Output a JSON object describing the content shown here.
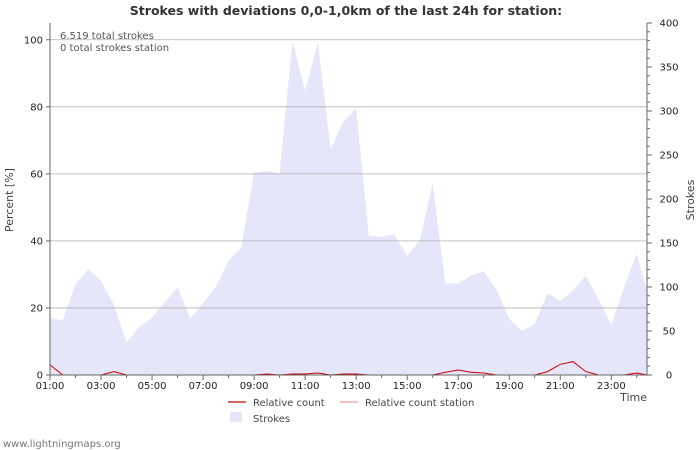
{
  "chart_data": {
    "type": "area",
    "title": "Strokes with deviations 0,0-1,0km of the last 24h for station:",
    "xlabel": "Time",
    "ylabel_left": "Percent   [%]",
    "ylabel_right": "Strokes",
    "y_left_range": [
      0,
      105
    ],
    "y_left_ticks": [
      "0",
      "20",
      "40",
      "60",
      "80",
      "100"
    ],
    "y_right_range": [
      0,
      400
    ],
    "y_right_ticks": [
      "0",
      "50",
      "100",
      "150",
      "200",
      "250",
      "300",
      "350",
      "400"
    ],
    "x_range": [
      1,
      24.4
    ],
    "x_ticks": [
      "01:00",
      "03:00",
      "05:00",
      "07:00",
      "09:00",
      "11:00",
      "13:00",
      "15:00",
      "17:00",
      "19:00",
      "21:00",
      "23:00"
    ],
    "grid": true,
    "annotations": [
      "6.519 total strokes",
      "0 total strokes station"
    ],
    "legend": [
      "Relative count",
      "Relative count station",
      "Strokes"
    ],
    "footer": "www.lightningmaps.org",
    "series": [
      {
        "name": "Strokes",
        "axis": "right",
        "color": "#e6e6fa",
        "points": [
          [
            1.0,
            65
          ],
          [
            1.5,
            62
          ],
          [
            2.0,
            103
          ],
          [
            2.5,
            120
          ],
          [
            3.0,
            107
          ],
          [
            3.5,
            80
          ],
          [
            4.0,
            37
          ],
          [
            4.5,
            55
          ],
          [
            5.0,
            65
          ],
          [
            5.5,
            83
          ],
          [
            6.0,
            99
          ],
          [
            6.5,
            64
          ],
          [
            7.0,
            82
          ],
          [
            7.5,
            100
          ],
          [
            8.0,
            130
          ],
          [
            8.5,
            145
          ],
          [
            9.0,
            230
          ],
          [
            9.5,
            232
          ],
          [
            10.0,
            229
          ],
          [
            10.5,
            380
          ],
          [
            11.0,
            323
          ],
          [
            11.5,
            378
          ],
          [
            12.0,
            257
          ],
          [
            12.5,
            288
          ],
          [
            13.0,
            303
          ],
          [
            13.5,
            158
          ],
          [
            14.0,
            157
          ],
          [
            14.5,
            160
          ],
          [
            15.0,
            135
          ],
          [
            15.5,
            153
          ],
          [
            16.0,
            218
          ],
          [
            16.5,
            104
          ],
          [
            17.0,
            104
          ],
          [
            17.5,
            113
          ],
          [
            18.0,
            118
          ],
          [
            18.5,
            97
          ],
          [
            19.0,
            64
          ],
          [
            19.5,
            50
          ],
          [
            20.0,
            58
          ],
          [
            20.5,
            93
          ],
          [
            21.0,
            84
          ],
          [
            21.5,
            96
          ],
          [
            22.0,
            113
          ],
          [
            22.5,
            86
          ],
          [
            23.0,
            57
          ],
          [
            23.5,
            99
          ],
          [
            24.0,
            138
          ],
          [
            24.4,
            95
          ]
        ]
      },
      {
        "name": "Relative count",
        "axis": "left",
        "color": "#cc0000",
        "points": [
          [
            1.0,
            3
          ],
          [
            1.5,
            0
          ],
          [
            2.0,
            0
          ],
          [
            3.0,
            0
          ],
          [
            3.5,
            1
          ],
          [
            4.0,
            0
          ],
          [
            9.0,
            0
          ],
          [
            9.5,
            0.3
          ],
          [
            10.0,
            0
          ],
          [
            10.5,
            0.3
          ],
          [
            11.0,
            0.3
          ],
          [
            11.5,
            0.6
          ],
          [
            12.0,
            0
          ],
          [
            12.5,
            0.3
          ],
          [
            13.0,
            0.3
          ],
          [
            13.5,
            0
          ],
          [
            16.0,
            0
          ],
          [
            16.5,
            0.8
          ],
          [
            17.0,
            1.5
          ],
          [
            17.5,
            0.8
          ],
          [
            18.0,
            0.6
          ],
          [
            18.5,
            0
          ],
          [
            20.0,
            0
          ],
          [
            20.5,
            1
          ],
          [
            21.0,
            3.2
          ],
          [
            21.5,
            4
          ],
          [
            22.0,
            1
          ],
          [
            22.5,
            0
          ],
          [
            23.5,
            0
          ],
          [
            24.0,
            0.6
          ],
          [
            24.4,
            0
          ]
        ]
      },
      {
        "name": "Relative count station",
        "axis": "left",
        "color": "#ff9999",
        "points": [
          [
            1.0,
            0
          ],
          [
            24.4,
            0
          ]
        ]
      }
    ]
  }
}
